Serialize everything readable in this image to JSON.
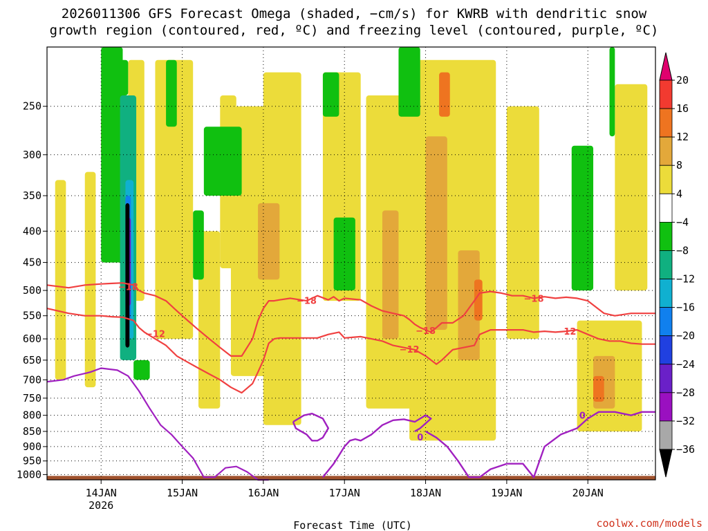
{
  "chart_data": {
    "type": "heatmap",
    "title_lines": [
      "2026011306 GFS Forecast Omega (shaded, −cm/s) for KWRB with dendritic snow",
      "growth region (contoured, red, ºC) and freezing level (contoured, purple, ºC)"
    ],
    "xlabel": "Forecast Time (UTC)",
    "ylabel": "",
    "x_axis": {
      "range_hours": [
        -20,
        205
      ],
      "ticks": [
        {
          "hour": 0,
          "label": "14JAN",
          "sublabel": "2026"
        },
        {
          "hour": 30,
          "label": "15JAN",
          "sublabel": ""
        },
        {
          "hour": 60,
          "label": "16JAN",
          "sublabel": ""
        },
        {
          "hour": 90,
          "label": "17JAN",
          "sublabel": ""
        },
        {
          "hour": 120,
          "label": "18JAN",
          "sublabel": ""
        },
        {
          "hour": 150,
          "label": "19JAN",
          "sublabel": ""
        },
        {
          "hour": 180,
          "label": "20JAN",
          "sublabel": ""
        }
      ]
    },
    "y_axis": {
      "scale": "log-pressure",
      "range": [
        1020,
        200
      ],
      "ticks": [
        {
          "value": 250,
          "label": "250"
        },
        {
          "value": 300,
          "label": "300"
        },
        {
          "value": 350,
          "label": "350"
        },
        {
          "value": 400,
          "label": "400"
        },
        {
          "value": 450,
          "label": "450"
        },
        {
          "value": 500,
          "label": "500"
        },
        {
          "value": 550,
          "label": "550"
        },
        {
          "value": 600,
          "label": "600"
        },
        {
          "value": 650,
          "label": "650"
        },
        {
          "value": 700,
          "label": "700"
        },
        {
          "value": 750,
          "label": "750"
        },
        {
          "value": 800,
          "label": "800"
        },
        {
          "value": 850,
          "label": "850"
        },
        {
          "value": 900,
          "label": "900"
        },
        {
          "value": 950,
          "label": "950"
        },
        {
          "value": 1000,
          "label": "1000"
        }
      ]
    },
    "grid": true,
    "colorbar": {
      "boundaries": [
        -36,
        -32,
        -28,
        -24,
        -20,
        -16,
        -12,
        -8,
        -4,
        4,
        8,
        12,
        16,
        20
      ],
      "labels": [
        "20",
        "16",
        "12",
        "8",
        "4",
        "−4",
        "−8",
        "−12",
        "−16",
        "−20",
        "−24",
        "−28",
        "−32",
        "−36"
      ],
      "colors_top_to_bottom": [
        "#e0006e",
        "#f23a30",
        "#ee7420",
        "#e3a83a",
        "#ecdc3a",
        "#ffffff",
        "#10c010",
        "#10b080",
        "#10b0d0",
        "#1080ee",
        "#2040e0",
        "#6a20c8",
        "#9a10c0",
        "#a8a8a8",
        "#000000"
      ]
    },
    "shaded_regions": [
      {
        "level": 4,
        "x": [
          -17,
          -13
        ],
        "p": [
          330,
          700
        ]
      },
      {
        "level": 4,
        "x": [
          -6,
          -2
        ],
        "p": [
          320,
          720
        ]
      },
      {
        "level": 4,
        "x": [
          0,
          8
        ],
        "p": [
          260,
          300
        ]
      },
      {
        "level": 4,
        "x": [
          10,
          16
        ],
        "p": [
          210,
          520
        ]
      },
      {
        "level": 4,
        "x": [
          20,
          34
        ],
        "p": [
          210,
          600
        ]
      },
      {
        "level": 4,
        "x": [
          36,
          44
        ],
        "p": [
          400,
          780
        ]
      },
      {
        "level": 4,
        "x": [
          44,
          50
        ],
        "p": [
          240,
          460
        ]
      },
      {
        "level": 4,
        "x": [
          48,
          64
        ],
        "p": [
          250,
          690
        ]
      },
      {
        "level": 4,
        "x": [
          60,
          74
        ],
        "p": [
          220,
          830
        ]
      },
      {
        "level": 4,
        "x": [
          82,
          96
        ],
        "p": [
          220,
          520
        ]
      },
      {
        "level": 4,
        "x": [
          98,
          116
        ],
        "p": [
          240,
          780
        ]
      },
      {
        "level": 4,
        "x": [
          114,
          146
        ],
        "p": [
          210,
          880
        ]
      },
      {
        "level": 4,
        "x": [
          150,
          162
        ],
        "p": [
          250,
          600
        ]
      },
      {
        "level": 4,
        "x": [
          176,
          200
        ],
        "p": [
          560,
          850
        ]
      },
      {
        "level": 4,
        "x": [
          190,
          202
        ],
        "p": [
          230,
          500
        ]
      },
      {
        "level": 8,
        "x": [
          58,
          66
        ],
        "p": [
          360,
          480
        ]
      },
      {
        "level": 8,
        "x": [
          104,
          110
        ],
        "p": [
          370,
          600
        ]
      },
      {
        "level": 8,
        "x": [
          120,
          128
        ],
        "p": [
          280,
          580
        ]
      },
      {
        "level": 8,
        "x": [
          132,
          140
        ],
        "p": [
          430,
          650
        ]
      },
      {
        "level": 8,
        "x": [
          182,
          190
        ],
        "p": [
          640,
          780
        ]
      },
      {
        "level": 12,
        "x": [
          125,
          129
        ],
        "p": [
          220,
          260
        ]
      },
      {
        "level": 12,
        "x": [
          138,
          141
        ],
        "p": [
          480,
          560
        ]
      },
      {
        "level": 12,
        "x": [
          182,
          186
        ],
        "p": [
          690,
          760
        ]
      },
      {
        "level": -4,
        "x": [
          34,
          38
        ],
        "p": [
          370,
          480
        ]
      },
      {
        "level": -4,
        "x": [
          6,
          10
        ],
        "p": [
          210,
          240
        ]
      },
      {
        "level": -4,
        "x": [
          24,
          28
        ],
        "p": [
          210,
          270
        ]
      },
      {
        "level": -4,
        "x": [
          38,
          52
        ],
        "p": [
          270,
          350
        ]
      },
      {
        "level": -4,
        "x": [
          82,
          88
        ],
        "p": [
          220,
          260
        ]
      },
      {
        "level": -4,
        "x": [
          86,
          94
        ],
        "p": [
          380,
          500
        ]
      },
      {
        "level": -4,
        "x": [
          110,
          118
        ],
        "p": [
          200,
          260
        ]
      },
      {
        "level": -4,
        "x": [
          174,
          182
        ],
        "p": [
          290,
          500
        ]
      },
      {
        "level": -4,
        "x": [
          12,
          18
        ],
        "p": [
          650,
          700
        ]
      },
      {
        "level": -4,
        "x": [
          0,
          8
        ],
        "p": [
          200,
          450
        ]
      },
      {
        "level": -8,
        "x": [
          188,
          190
        ],
        "p": [
          200,
          280
        ]
      },
      {
        "level": -8,
        "x": [
          176,
          178
        ],
        "p": [
          400,
          460
        ]
      },
      {
        "level": -12,
        "x": [
          7,
          13
        ],
        "p": [
          240,
          650
        ]
      },
      {
        "level": -16,
        "x": [
          9,
          12
        ],
        "p": [
          330,
          600
        ]
      },
      {
        "level": -20,
        "x": [
          9,
          11
        ],
        "p": [
          350,
          560
        ]
      },
      {
        "level": -28,
        "x": [
          9,
          11
        ],
        "p": [
          380,
          530
        ]
      },
      {
        "level": -36,
        "x": [
          9,
          10.5
        ],
        "p": [
          360,
          620
        ]
      }
    ],
    "contours": [
      {
        "value": -18,
        "color": "#f04040",
        "label": "−18",
        "x": [
          -20,
          -12,
          -6,
          0,
          4,
          8,
          12,
          14,
          16,
          20,
          24,
          28,
          32,
          36,
          40,
          44,
          48,
          52,
          56,
          58,
          60,
          62,
          64,
          66,
          70,
          76,
          80,
          84,
          86,
          88,
          90,
          96,
          100,
          104,
          108,
          112,
          114,
          116,
          118,
          120,
          122,
          124,
          126,
          130,
          134,
          138,
          140,
          144,
          148,
          152,
          156,
          160,
          164,
          168,
          172,
          176,
          180,
          186,
          190,
          196,
          205
        ],
        "p": [
          490,
          495,
          490,
          488,
          487,
          486,
          490,
          500,
          505,
          510,
          520,
          540,
          560,
          580,
          600,
          620,
          640,
          640,
          600,
          560,
          535,
          520,
          520,
          518,
          515,
          520,
          510,
          518,
          512,
          520,
          515,
          518,
          530,
          540,
          545,
          550,
          558,
          568,
          575,
          580,
          585,
          575,
          565,
          565,
          550,
          520,
          505,
          502,
          505,
          510,
          510,
          515,
          512,
          515,
          513,
          515,
          520,
          545,
          550,
          545,
          545
        ],
        "label_at": [
          [
            10,
            493
          ],
          [
            76,
            519
          ],
          [
            120,
            581
          ],
          [
            160,
            515
          ]
        ]
      },
      {
        "value": -12,
        "color": "#f04040",
        "label": "−12",
        "x": [
          -20,
          -12,
          -6,
          0,
          4,
          8,
          12,
          14,
          16,
          20,
          24,
          28,
          32,
          36,
          40,
          44,
          48,
          52,
          56,
          58,
          60,
          62,
          64,
          66,
          70,
          76,
          80,
          84,
          88,
          90,
          96,
          100,
          104,
          108,
          112,
          116,
          120,
          124,
          126,
          130,
          134,
          138,
          140,
          144,
          148,
          152,
          156,
          160,
          164,
          168,
          172,
          176,
          180,
          184,
          188,
          192,
          196,
          200,
          205
        ],
        "p": [
          535,
          545,
          550,
          550,
          552,
          553,
          560,
          575,
          585,
          600,
          615,
          640,
          655,
          670,
          685,
          700,
          720,
          735,
          710,
          680,
          650,
          610,
          600,
          598,
          598,
          598,
          598,
          590,
          585,
          598,
          595,
          600,
          605,
          615,
          620,
          625,
          640,
          660,
          650,
          625,
          620,
          615,
          590,
          580,
          580,
          580,
          580,
          585,
          583,
          585,
          583,
          580,
          590,
          600,
          605,
          605,
          610,
          612,
          612
        ],
        "label_at": [
          [
            20,
            588
          ],
          [
            114,
            624
          ],
          [
            172,
            583
          ]
        ]
      },
      {
        "value": 0,
        "color": "#a020c0",
        "label": "0",
        "x": [
          -20,
          -14,
          -10,
          -4,
          0,
          6,
          10,
          14,
          18,
          22,
          26,
          30,
          34,
          38,
          42,
          46,
          50,
          54,
          58,
          62
        ],
        "p": [
          705,
          700,
          690,
          680,
          670,
          675,
          690,
          730,
          780,
          830,
          860,
          900,
          940,
          1010,
          1010,
          975,
          970,
          990,
          1020,
          1020
        ],
        "label_at": [
          [
            118,
            868
          ],
          [
            178,
            800
          ]
        ]
      }
    ],
    "contour_extra_0C": [
      {
        "x": [
          71,
          75,
          78,
          82,
          84,
          82,
          80,
          78,
          76,
          72,
          71
        ],
        "p": [
          820,
          800,
          795,
          810,
          840,
          870,
          880,
          880,
          860,
          840,
          820
        ]
      },
      {
        "x": [
          82,
          86,
          88,
          90,
          92,
          94,
          96,
          100,
          104,
          108,
          112,
          116,
          118,
          120,
          122,
          118,
          116
        ],
        "p": [
          1010,
          960,
          930,
          900,
          880,
          875,
          880,
          860,
          830,
          815,
          812,
          820,
          810,
          800,
          810,
          840,
          850
        ]
      },
      {
        "x": [
          120,
          124,
          128,
          132,
          136,
          140,
          144,
          150,
          156,
          160,
          164,
          170,
          176,
          180,
          184,
          190,
          196,
          200,
          205
        ],
        "p": [
          850,
          870,
          900,
          950,
          1010,
          1010,
          980,
          960,
          960,
          1010,
          900,
          860,
          840,
          810,
          790,
          790,
          800,
          790,
          790
        ]
      }
    ],
    "ground": {
      "from_pressure": 1005,
      "color": "#a0522d"
    }
  },
  "credit": "coolwx.com/models"
}
